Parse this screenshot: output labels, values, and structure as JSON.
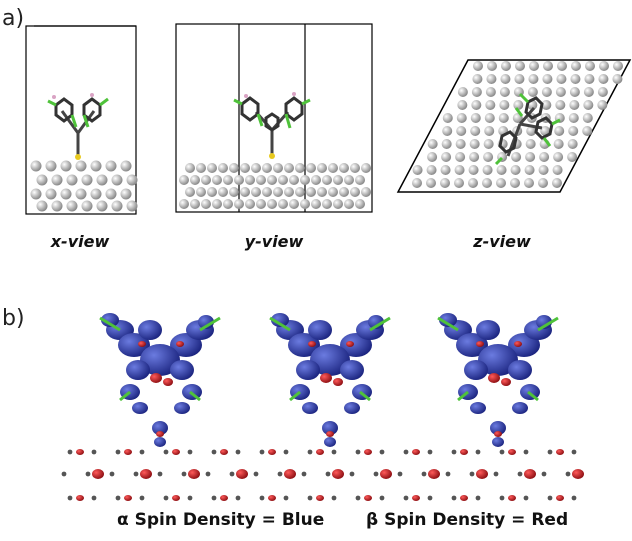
{
  "panel_a": {
    "label": "a)",
    "views": [
      "x-view",
      "y-view",
      "z-view"
    ]
  },
  "panel_b": {
    "label": "b)",
    "legend_alpha": "α Spin Density = Blue",
    "legend_beta": "β Spin Density = Red"
  },
  "colors": {
    "alpha_spin": "#2b3a9e",
    "beta_spin": "#c0151c",
    "carbon": "#3a3a3a",
    "fluorine": "#4fc23a",
    "hydrogen": "#d9a3c4",
    "sulfur": "#e8c91f",
    "metal": "#d8d8d8"
  }
}
